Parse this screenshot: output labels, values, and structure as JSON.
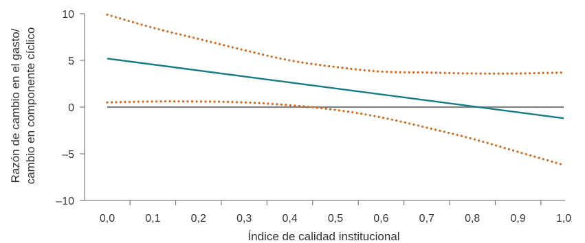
{
  "chart_data": {
    "type": "line",
    "title": "",
    "xlabel": "Índice de calidad institucional",
    "ylabel": [
      "Razón de cambio en el gasto/",
      "cambio en componente cíclico"
    ],
    "xlim": [
      0,
      1
    ],
    "ylim": [
      -10,
      10
    ],
    "x_ticks": [
      "0,0",
      "0,1",
      "0,2",
      "0,3",
      "0,4",
      "0,5",
      "0,6",
      "0,7",
      "0,8",
      "0,9",
      "1,0"
    ],
    "y_ticks": [
      "–10",
      "–5",
      "0",
      "5",
      "10"
    ],
    "y_tick_values": [
      -10,
      -5,
      0,
      5,
      10
    ],
    "grid": false,
    "legend": "none",
    "series": [
      {
        "role": "estimate",
        "style": "solid",
        "color": "#157a82",
        "x": [
          0,
          1
        ],
        "y": [
          5.2,
          -1.2
        ]
      },
      {
        "role": "upper_band",
        "style": "dotted",
        "color": "#d2691e",
        "x": [
          0,
          0.1,
          0.2,
          0.3,
          0.4,
          0.5,
          0.6,
          0.7,
          0.8,
          0.9,
          1.0
        ],
        "y": [
          9.9,
          8.5,
          7.3,
          6.1,
          5.0,
          4.3,
          3.8,
          3.7,
          3.6,
          3.6,
          3.7
        ]
      },
      {
        "role": "lower_band",
        "style": "dotted",
        "color": "#d2691e",
        "x": [
          0,
          0.1,
          0.2,
          0.3,
          0.4,
          0.5,
          0.6,
          0.7,
          0.8,
          0.9,
          1.0
        ],
        "y": [
          0.5,
          0.6,
          0.6,
          0.5,
          0.2,
          -0.3,
          -1.1,
          -2.2,
          -3.4,
          -4.8,
          -6.2
        ]
      },
      {
        "role": "zero_reference",
        "style": "solid",
        "color": "#808080",
        "x": [
          0,
          1
        ],
        "y": [
          0,
          0
        ]
      }
    ]
  }
}
